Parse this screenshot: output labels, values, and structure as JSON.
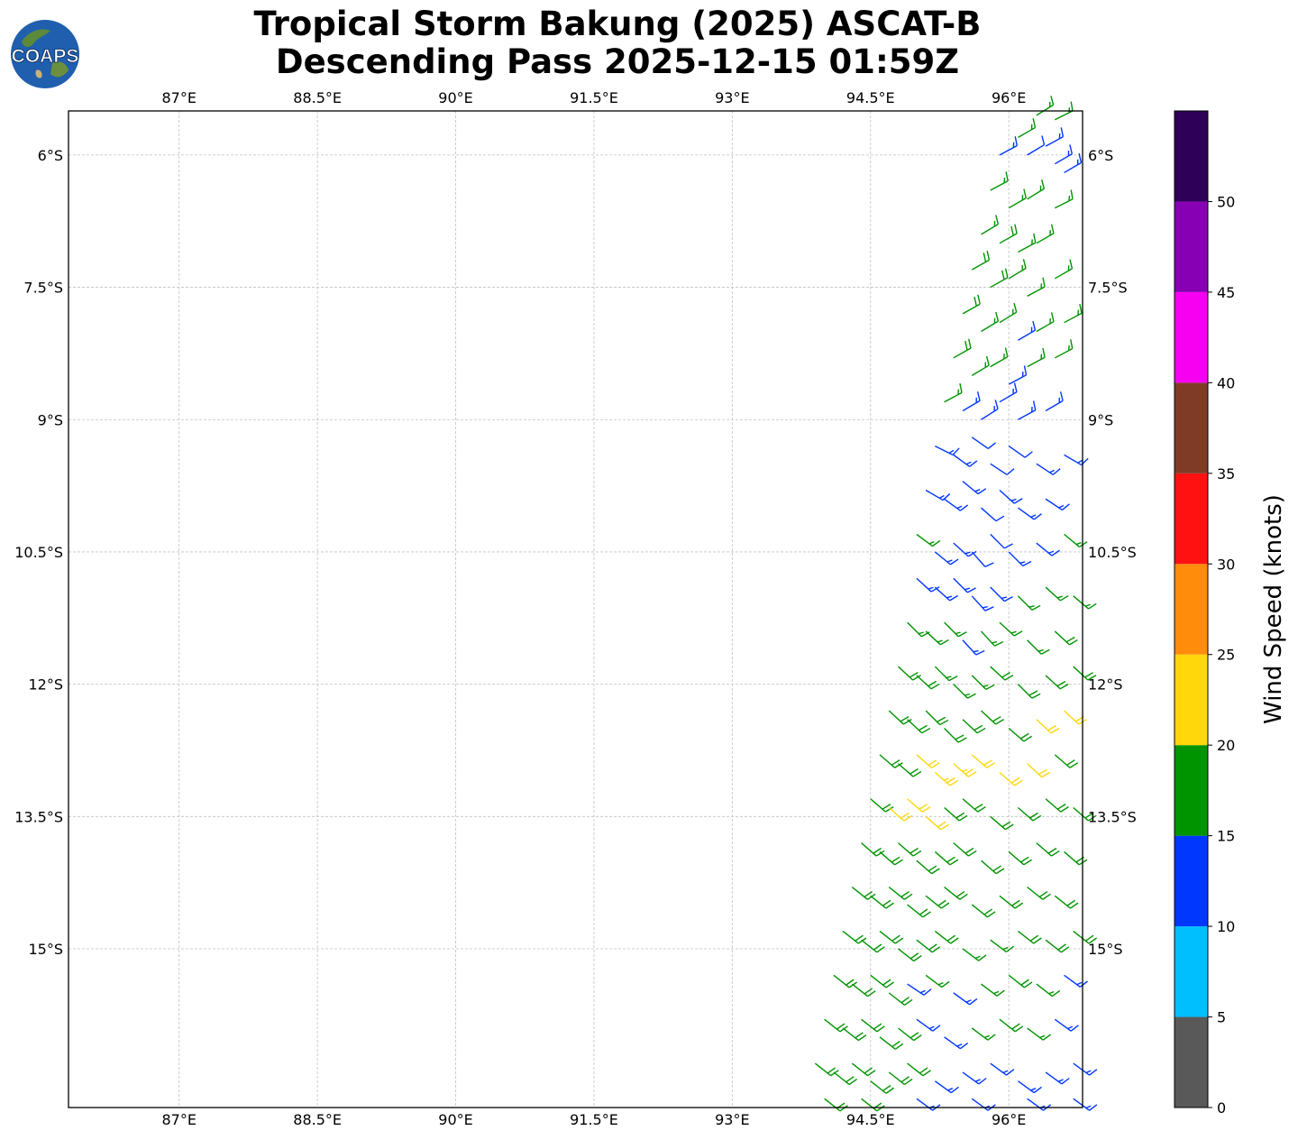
{
  "header": {
    "logo_text": "COAPS",
    "title_line1": "Tropical Storm Bakung (2025) ASCAT-B",
    "title_line2": "Descending Pass 2025-12-15 01:59Z"
  },
  "map": {
    "lon_range": [
      85.8,
      96.8
    ],
    "lat_range": [
      -16.8,
      -5.5
    ],
    "lon_ticks": [
      87,
      88.5,
      90,
      91.5,
      93,
      94.5,
      96
    ],
    "lon_tick_labels": [
      "87°E",
      "88.5°E",
      "90°E",
      "91.5°E",
      "93°E",
      "94.5°E",
      "96°E"
    ],
    "lat_ticks": [
      -6,
      -7.5,
      -9,
      -10.5,
      -12,
      -13.5,
      -15
    ],
    "lat_tick_labels": [
      "6°S",
      "7.5°S",
      "9°S",
      "10.5°S",
      "12°S",
      "13.5°S",
      "15°S"
    ],
    "gridlines": true,
    "swath_east_edge_lon": 96.8
  },
  "colorbar": {
    "label": "Wind Speed (knots)",
    "bounds": [
      0,
      5,
      10,
      15,
      20,
      25,
      30,
      35,
      40,
      45,
      50,
      55
    ],
    "tick_labels": [
      "0",
      "5",
      "10",
      "15",
      "20",
      "25",
      "30",
      "35",
      "40",
      "45",
      "50"
    ],
    "colors": [
      "#595959",
      "#00bfff",
      "#0037ff",
      "#009400",
      "#ffd70a",
      "#ff8c0a",
      "#ff1111",
      "#7f3b26",
      "#f700f1",
      "#8800b4",
      "#2f0058"
    ]
  },
  "chart_data": {
    "type": "scatter",
    "title": "Tropical Storm Bakung (2025) ASCAT-B Descending Pass 2025-12-15 01:59Z",
    "xlabel": "",
    "ylabel": "",
    "colorbar_label": "Wind Speed (knots)",
    "xlim": [
      85.8,
      96.8
    ],
    "ylim": [
      -16.8,
      -5.5
    ],
    "grid": true,
    "legend": "colorbar-right",
    "fields": [
      "lon",
      "lat",
      "u_kt",
      "v_kt"
    ],
    "wind_barbs": [
      [
        96.3,
        -5.55,
        -13,
        -8
      ],
      [
        96.1,
        -5.8,
        -14,
        -8
      ],
      [
        95.9,
        -6.0,
        -13,
        -7
      ],
      [
        96.5,
        -5.6,
        -14,
        -7
      ],
      [
        96.2,
        -6.0,
        -10,
        -6
      ],
      [
        96.4,
        -5.9,
        -11,
        -6
      ],
      [
        96.5,
        -6.1,
        -12,
        -7
      ],
      [
        96.6,
        -6.2,
        -12,
        -7
      ],
      [
        95.8,
        -6.4,
        -15,
        -8
      ],
      [
        96.0,
        -6.6,
        -14,
        -8
      ],
      [
        96.2,
        -6.5,
        -13,
        -8
      ],
      [
        96.5,
        -6.6,
        -14,
        -7
      ],
      [
        95.7,
        -6.9,
        -15,
        -9
      ],
      [
        95.9,
        -7.0,
        -16,
        -9
      ],
      [
        96.1,
        -7.1,
        -15,
        -8
      ],
      [
        96.3,
        -7.0,
        -14,
        -8
      ],
      [
        95.6,
        -7.3,
        -16,
        -9
      ],
      [
        95.8,
        -7.5,
        -16,
        -9
      ],
      [
        96.0,
        -7.4,
        -15,
        -9
      ],
      [
        96.2,
        -7.6,
        -15,
        -8
      ],
      [
        96.5,
        -7.4,
        -14,
        -8
      ],
      [
        95.5,
        -7.8,
        -16,
        -9
      ],
      [
        95.7,
        -8.0,
        -15,
        -9
      ],
      [
        95.9,
        -7.9,
        -13,
        -8
      ],
      [
        96.1,
        -8.1,
        -12,
        -7
      ],
      [
        96.3,
        -8.0,
        -14,
        -8
      ],
      [
        96.6,
        -7.9,
        -15,
        -8
      ],
      [
        95.4,
        -8.3,
        -16,
        -9
      ],
      [
        95.6,
        -8.5,
        -15,
        -9
      ],
      [
        95.8,
        -8.4,
        -14,
        -8
      ],
      [
        96.0,
        -8.6,
        -13,
        -7
      ],
      [
        96.2,
        -8.4,
        -15,
        -8
      ],
      [
        96.5,
        -8.3,
        -15,
        -8
      ],
      [
        95.3,
        -8.8,
        -15,
        -8
      ],
      [
        95.5,
        -8.9,
        -12,
        -7
      ],
      [
        95.7,
        -9.0,
        -11,
        -7
      ],
      [
        95.9,
        -8.8,
        -12,
        -7
      ],
      [
        96.1,
        -9.0,
        -11,
        -6
      ],
      [
        96.4,
        -8.9,
        -12,
        -7
      ],
      [
        95.2,
        -9.3,
        -12,
        6
      ],
      [
        95.4,
        -9.4,
        -11,
        8
      ],
      [
        95.6,
        -9.2,
        -10,
        7
      ],
      [
        95.8,
        -9.5,
        -9,
        6
      ],
      [
        96.0,
        -9.3,
        -10,
        7
      ],
      [
        96.3,
        -9.5,
        -12,
        8
      ],
      [
        96.6,
        -9.4,
        -12,
        7
      ],
      [
        95.1,
        -9.8,
        -12,
        7
      ],
      [
        95.3,
        -9.9,
        -11,
        8
      ],
      [
        95.5,
        -9.7,
        -11,
        9
      ],
      [
        95.7,
        -10.0,
        -9,
        8
      ],
      [
        95.9,
        -9.8,
        -10,
        9
      ],
      [
        96.1,
        -10.0,
        -11,
        8
      ],
      [
        96.4,
        -9.9,
        -12,
        8
      ],
      [
        95.0,
        -10.3,
        -12,
        9
      ],
      [
        95.2,
        -10.5,
        -11,
        9
      ],
      [
        95.4,
        -10.4,
        -10,
        9
      ],
      [
        95.6,
        -10.5,
        -8,
        9
      ],
      [
        95.8,
        -10.3,
        -8,
        8
      ],
      [
        96.0,
        -10.5,
        -9,
        9
      ],
      [
        96.3,
        -10.4,
        -11,
        9
      ],
      [
        96.6,
        -10.3,
        -12,
        10
      ],
      [
        95.0,
        -10.8,
        -11,
        10
      ],
      [
        95.2,
        -10.9,
        -11,
        10
      ],
      [
        95.4,
        -10.8,
        -9,
        9
      ],
      [
        95.6,
        -11.0,
        -9,
        10
      ],
      [
        95.8,
        -10.9,
        -10,
        10
      ],
      [
        96.1,
        -11.0,
        -11,
        11
      ],
      [
        96.4,
        -10.9,
        -12,
        11
      ],
      [
        96.7,
        -11.0,
        -13,
        11
      ],
      [
        94.9,
        -11.3,
        -12,
        12
      ],
      [
        95.1,
        -11.4,
        -12,
        11
      ],
      [
        95.3,
        -11.3,
        -11,
        11
      ],
      [
        95.5,
        -11.5,
        -10,
        11
      ],
      [
        95.7,
        -11.4,
        -11,
        12
      ],
      [
        95.9,
        -11.3,
        -12,
        11
      ],
      [
        96.2,
        -11.5,
        -12,
        12
      ],
      [
        96.5,
        -11.4,
        -13,
        12
      ],
      [
        94.8,
        -11.8,
        -13,
        12
      ],
      [
        95.0,
        -11.9,
        -13,
        12
      ],
      [
        95.2,
        -11.8,
        -12,
        12
      ],
      [
        95.4,
        -12.0,
        -12,
        12
      ],
      [
        95.6,
        -11.9,
        -12,
        12
      ],
      [
        95.8,
        -11.8,
        -13,
        12
      ],
      [
        96.1,
        -12.0,
        -13,
        13
      ],
      [
        96.4,
        -11.9,
        -14,
        13
      ],
      [
        96.7,
        -11.8,
        -14,
        13
      ],
      [
        94.7,
        -12.3,
        -14,
        13
      ],
      [
        94.9,
        -12.4,
        -14,
        13
      ],
      [
        95.1,
        -12.3,
        -13,
        13
      ],
      [
        95.3,
        -12.5,
        -13,
        13
      ],
      [
        95.5,
        -12.4,
        -14,
        13
      ],
      [
        95.7,
        -12.3,
        -14,
        13
      ],
      [
        96.0,
        -12.5,
        -15,
        13
      ],
      [
        96.3,
        -12.4,
        -15,
        14
      ],
      [
        96.6,
        -12.3,
        -15,
        14
      ],
      [
        94.6,
        -12.8,
        -15,
        13
      ],
      [
        94.8,
        -12.9,
        -15,
        13
      ],
      [
        95.0,
        -12.8,
        -16,
        14
      ],
      [
        95.2,
        -13.0,
        -17,
        15
      ],
      [
        95.4,
        -12.9,
        -17,
        15
      ],
      [
        95.6,
        -12.8,
        -16,
        14
      ],
      [
        95.9,
        -13.0,
        -16,
        14
      ],
      [
        96.2,
        -12.9,
        -15,
        14
      ],
      [
        96.5,
        -12.8,
        -15,
        13
      ],
      [
        94.5,
        -13.3,
        -15,
        13
      ],
      [
        94.7,
        -13.4,
        -16,
        14
      ],
      [
        94.9,
        -13.3,
        -16,
        14
      ],
      [
        95.1,
        -13.5,
        -16,
        14
      ],
      [
        95.3,
        -13.4,
        -15,
        13
      ],
      [
        95.5,
        -13.3,
        -15,
        13
      ],
      [
        95.8,
        -13.5,
        -15,
        13
      ],
      [
        96.1,
        -13.4,
        -15,
        13
      ],
      [
        96.4,
        -13.3,
        -15,
        13
      ],
      [
        96.7,
        -13.4,
        -15,
        13
      ],
      [
        94.4,
        -13.8,
        -15,
        13
      ],
      [
        94.6,
        -13.9,
        -15,
        13
      ],
      [
        94.8,
        -13.8,
        -15,
        13
      ],
      [
        95.0,
        -14.0,
        -15,
        13
      ],
      [
        95.2,
        -13.9,
        -15,
        13
      ],
      [
        95.4,
        -13.8,
        -15,
        13
      ],
      [
        95.7,
        -14.0,
        -15,
        13
      ],
      [
        96.0,
        -13.9,
        -15,
        13
      ],
      [
        96.3,
        -13.8,
        -15,
        13
      ],
      [
        96.6,
        -13.9,
        -15,
        13
      ],
      [
        94.3,
        -14.3,
        -15,
        12
      ],
      [
        94.5,
        -14.4,
        -15,
        12
      ],
      [
        94.7,
        -14.3,
        -15,
        12
      ],
      [
        94.9,
        -14.5,
        -15,
        12
      ],
      [
        95.1,
        -14.4,
        -15,
        12
      ],
      [
        95.3,
        -14.3,
        -15,
        12
      ],
      [
        95.6,
        -14.5,
        -15,
        12
      ],
      [
        95.9,
        -14.4,
        -15,
        12
      ],
      [
        96.2,
        -14.3,
        -15,
        12
      ],
      [
        96.5,
        -14.4,
        -15,
        12
      ],
      [
        94.2,
        -14.8,
        -14,
        11
      ],
      [
        94.4,
        -14.9,
        -14,
        11
      ],
      [
        94.6,
        -14.8,
        -14,
        11
      ],
      [
        94.8,
        -15.0,
        -14,
        11
      ],
      [
        95.0,
        -14.9,
        -14,
        11
      ],
      [
        95.2,
        -14.8,
        -14,
        11
      ],
      [
        95.5,
        -15.0,
        -12,
        9
      ],
      [
        95.8,
        -14.9,
        -12,
        9
      ],
      [
        96.1,
        -14.8,
        -14,
        11
      ],
      [
        96.4,
        -14.9,
        -14,
        11
      ],
      [
        96.7,
        -14.8,
        -14,
        11
      ],
      [
        94.1,
        -15.3,
        -14,
        11
      ],
      [
        94.3,
        -15.4,
        -14,
        11
      ],
      [
        94.5,
        -15.3,
        -14,
        11
      ],
      [
        94.7,
        -15.5,
        -14,
        11
      ],
      [
        94.9,
        -15.4,
        -12,
        8
      ],
      [
        95.1,
        -15.3,
        -12,
        9
      ],
      [
        95.4,
        -15.5,
        -11,
        8
      ],
      [
        95.7,
        -15.4,
        -12,
        9
      ],
      [
        96.0,
        -15.3,
        -14,
        11
      ],
      [
        96.3,
        -15.4,
        -13,
        10
      ],
      [
        96.6,
        -15.3,
        -11,
        8
      ],
      [
        94.0,
        -15.8,
        -14,
        11
      ],
      [
        94.2,
        -15.9,
        -14,
        11
      ],
      [
        94.4,
        -15.8,
        -14,
        11
      ],
      [
        94.6,
        -16.0,
        -14,
        11
      ],
      [
        94.8,
        -15.9,
        -14,
        11
      ],
      [
        95.0,
        -15.8,
        -11,
        8
      ],
      [
        95.3,
        -16.0,
        -11,
        8
      ],
      [
        95.6,
        -15.9,
        -12,
        9
      ],
      [
        95.9,
        -15.8,
        -14,
        11
      ],
      [
        96.2,
        -15.9,
        -12,
        9
      ],
      [
        96.5,
        -15.8,
        -11,
        8
      ],
      [
        93.9,
        -16.3,
        -14,
        11
      ],
      [
        94.1,
        -16.4,
        -14,
        11
      ],
      [
        94.3,
        -16.3,
        -14,
        11
      ],
      [
        94.5,
        -16.5,
        -14,
        11
      ],
      [
        94.7,
        -16.4,
        -14,
        11
      ],
      [
        94.9,
        -16.3,
        -14,
        11
      ],
      [
        95.2,
        -16.5,
        -11,
        8
      ],
      [
        95.5,
        -16.4,
        -11,
        8
      ],
      [
        95.8,
        -16.3,
        -11,
        8
      ],
      [
        96.1,
        -16.5,
        -11,
        8
      ],
      [
        96.4,
        -16.4,
        -11,
        8
      ],
      [
        96.7,
        -16.3,
        -11,
        8
      ],
      [
        94.0,
        -16.7,
        -14,
        11
      ],
      [
        94.4,
        -16.7,
        -14,
        11
      ],
      [
        95.0,
        -16.7,
        -11,
        8
      ],
      [
        95.6,
        -16.7,
        -11,
        8
      ],
      [
        96.2,
        -16.7,
        -11,
        8
      ],
      [
        96.7,
        -16.7,
        -11,
        8
      ]
    ]
  }
}
